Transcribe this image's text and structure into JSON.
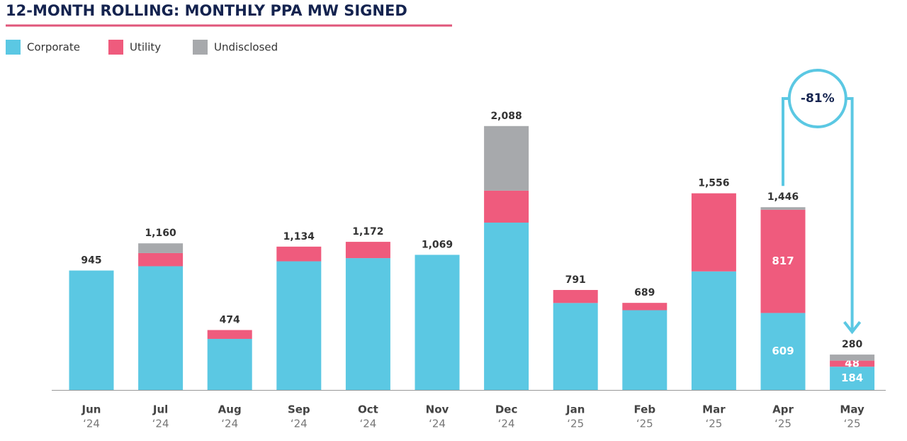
{
  "chart_data": {
    "type": "stacked_bar",
    "title": "12-MONTH ROLLING: MONTHLY PPA MW SIGNED",
    "categories": [
      "Jun",
      "Jul",
      "Aug",
      "Sep",
      "Oct",
      "Nov",
      "Dec",
      "Jan",
      "Feb",
      "Mar",
      "Apr",
      "May"
    ],
    "category_sublabels": [
      "‘24",
      "‘24",
      "‘24",
      "‘24",
      "‘24",
      "‘24",
      "‘24",
      "‘25",
      "‘25",
      "‘25",
      "‘25",
      "‘25"
    ],
    "series": [
      {
        "name": "Corporate",
        "color": "#5bc8e3",
        "values": [
          945,
          979,
          404,
          1018,
          1043,
          1069,
          1324,
          688,
          631,
          938,
          609,
          184
        ],
        "value_labels": [
          null,
          null,
          null,
          null,
          null,
          null,
          null,
          null,
          null,
          null,
          "609",
          "184"
        ]
      },
      {
        "name": "Utility",
        "color": "#ef5b7d",
        "values": [
          0,
          104,
          70,
          116,
          129,
          0,
          253,
          103,
          58,
          618,
          817,
          48
        ],
        "value_labels": [
          null,
          null,
          null,
          null,
          null,
          null,
          null,
          null,
          null,
          null,
          "817",
          "48"
        ]
      },
      {
        "name": "Undisclosed",
        "color": "#a7a9ac",
        "values": [
          0,
          77,
          0,
          0,
          0,
          0,
          511,
          0,
          0,
          0,
          20,
          48
        ]
      }
    ],
    "totals": [
      945,
      1160,
      474,
      1134,
      1172,
      1069,
      2088,
      791,
      689,
      1556,
      1446,
      280
    ],
    "total_labels": [
      "945",
      "1,160",
      "474",
      "1,134",
      "1,172",
      "1,069",
      "2,088",
      "791",
      "689",
      "1,556",
      "1,446",
      "280"
    ],
    "annotation": "-81%",
    "ylim": [
      0,
      2300
    ]
  }
}
